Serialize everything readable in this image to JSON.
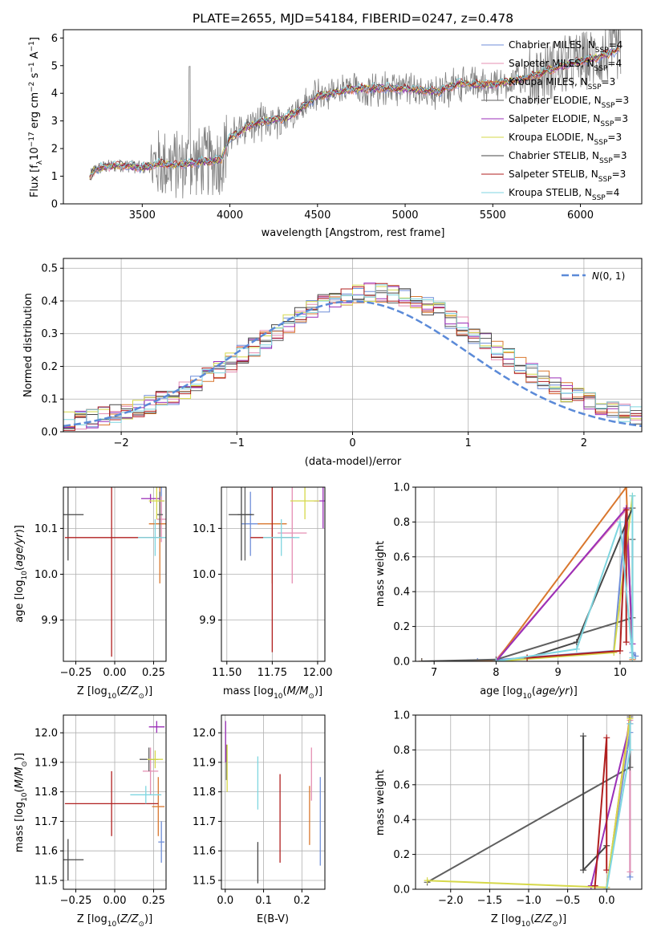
{
  "palette": [
    "#6f8ed8",
    "#e58fb3",
    "#d9772e",
    "#5f5f5f",
    "#9b2fb8",
    "#d6d84a",
    "#474747",
    "#b01f1f",
    "#7fd6e0"
  ],
  "chart_data": [
    {
      "id": "spectrum",
      "type": "line",
      "title": "PLATE=2655, MJD=54184, FIBERID=0247, z=0.478",
      "xlabel": "wavelength [Angstrom, rest frame]",
      "ylabel": "Flux [f$_\\lambda$10$^{-17}$ erg cm$^{-2}$ s$^{-1}$ A$^{-1}$]",
      "xlim": [
        3050,
        6350
      ],
      "ylim": [
        0,
        6.3
      ],
      "xticks": [
        3500,
        4000,
        4500,
        5000,
        5500,
        6000
      ],
      "yticks": [
        0,
        1,
        2,
        3,
        4,
        5,
        6
      ],
      "grid": false,
      "legend_position": "upper right",
      "data_color": "#808080",
      "model_anchors": [
        [
          3200,
          0.95
        ],
        [
          3230,
          1.25
        ],
        [
          3300,
          1.35
        ],
        [
          3400,
          1.4
        ],
        [
          3500,
          1.3
        ],
        [
          3600,
          1.45
        ],
        [
          3700,
          1.4
        ],
        [
          3800,
          1.5
        ],
        [
          3900,
          1.55
        ],
        [
          3950,
          1.6
        ],
        [
          3990,
          2.3
        ],
        [
          4100,
          2.8
        ],
        [
          4200,
          3.0
        ],
        [
          4300,
          3.05
        ],
        [
          4400,
          3.4
        ],
        [
          4500,
          3.9
        ],
        [
          4700,
          4.15
        ],
        [
          4900,
          4.2
        ],
        [
          5100,
          4.1
        ],
        [
          5200,
          4.05
        ],
        [
          5300,
          4.35
        ],
        [
          5500,
          4.3
        ],
        [
          5700,
          4.55
        ],
        [
          5900,
          5.0
        ],
        [
          6100,
          5.3
        ],
        [
          6230,
          5.6
        ]
      ],
      "series": [
        {
          "name": "Chabrier MILES, N",
          "sub": "SSP",
          "suffix": "=4",
          "color": "#6f8ed8"
        },
        {
          "name": "Salpeter MILES, N",
          "sub": "SSP",
          "suffix": "=4",
          "color": "#e58fb3"
        },
        {
          "name": "Kroupa MILES, N",
          "sub": "SSP",
          "suffix": "=3",
          "color": "#d9772e"
        },
        {
          "name": "Chabrier ELODIE, N",
          "sub": "SSP",
          "suffix": "=3",
          "color": "#5f5f5f"
        },
        {
          "name": "Salpeter ELODIE, N",
          "sub": "SSP",
          "suffix": "=3",
          "color": "#9b2fb8"
        },
        {
          "name": "Kroupa ELODIE, N",
          "sub": "SSP",
          "suffix": "=3",
          "color": "#d6d84a"
        },
        {
          "name": "Chabrier STELIB, N",
          "sub": "SSP",
          "suffix": "=3",
          "color": "#474747"
        },
        {
          "name": "Salpeter STELIB, N",
          "sub": "SSP",
          "suffix": "=3",
          "color": "#b01f1f"
        },
        {
          "name": "Kroupa STELIB, N",
          "sub": "SSP",
          "suffix": "=4",
          "color": "#7fd6e0"
        }
      ]
    },
    {
      "id": "residuals",
      "type": "line",
      "xlabel": "(data-model)/error",
      "ylabel": "Normed distribution",
      "xlim": [
        -2.5,
        2.5
      ],
      "ylim": [
        0,
        0.53
      ],
      "xticks": [
        -2,
        -1,
        0,
        1,
        2
      ],
      "yticks": [
        0.0,
        0.1,
        0.2,
        0.3,
        0.4,
        0.5
      ],
      "grid": true,
      "legend_position": "upper right",
      "gaussian_label": "N(0, 1)",
      "gaussian_color": "#5b8ad8",
      "bin_width": 0.1,
      "histogram_color_order": [
        0,
        1,
        2,
        3,
        4,
        5,
        6,
        7,
        8
      ]
    },
    {
      "id": "age_vs_Z",
      "type": "scatter",
      "xlabel": "Z [log10(Z/Z☉)]",
      "ylabel": "age  [log10(age/yr)]",
      "xlim": [
        -0.33,
        0.33
      ],
      "ylim": [
        9.81,
        10.19
      ],
      "xticks": [
        -0.25,
        0.0,
        0.25
      ],
      "yticks": [
        9.9,
        10.0,
        10.1
      ],
      "grid": true,
      "points": [
        {
          "x": 0.3,
          "y": 10.16,
          "xerr": 0.02,
          "yerr": 0.03,
          "color": "#6f8ed8"
        },
        {
          "x": 0.3,
          "y": 10.12,
          "xerr": 0.03,
          "yerr": 0.05,
          "color": "#e58fb3"
        },
        {
          "x": 0.29,
          "y": 10.11,
          "xerr": 0.07,
          "yerr": 0.13,
          "color": "#d9772e"
        },
        {
          "x": 0.29,
          "y": 10.13,
          "xerr": 0.02,
          "yerr": 0.05,
          "color": "#5f5f5f"
        },
        {
          "x": 0.23,
          "y": 10.165,
          "xerr": 0.06,
          "yerr": 0.01,
          "color": "#9b2fb8"
        },
        {
          "x": 0.27,
          "y": 10.16,
          "xerr": 0.05,
          "yerr": 0.04,
          "color": "#d6d84a"
        },
        {
          "x": -0.3,
          "y": 10.13,
          "xerr": 0.1,
          "yerr": 0.1,
          "color": "#474747"
        },
        {
          "x": -0.02,
          "y": 10.08,
          "xerr": 0.3,
          "yerr": 0.26,
          "color": "#b01f1f"
        },
        {
          "x": 0.26,
          "y": 10.08,
          "xerr": 0.11,
          "yerr": 0.04,
          "color": "#7fd6e0"
        }
      ]
    },
    {
      "id": "age_vs_mass",
      "type": "scatter",
      "xlabel": "mass [log10(M/M☉)]",
      "ylabel": "",
      "xlim": [
        11.47,
        12.04
      ],
      "ylim": [
        9.81,
        10.19
      ],
      "xticks": [
        11.5,
        11.75,
        12.0
      ],
      "yticks": [
        9.9,
        10.0,
        10.1
      ],
      "grid": true,
      "points": [
        {
          "x": 11.63,
          "y": 10.11,
          "xerr": 0.05,
          "yerr": 0.07,
          "color": "#6f8ed8"
        },
        {
          "x": 11.86,
          "y": 10.09,
          "xerr": 0.08,
          "yerr": 0.11,
          "color": "#e58fb3"
        },
        {
          "x": 11.75,
          "y": 10.11,
          "xerr": 0.08,
          "yerr": 0.13,
          "color": "#d9772e"
        },
        {
          "x": 11.6,
          "y": 10.13,
          "xerr": 0.04,
          "yerr": 0.1,
          "color": "#5f5f5f"
        },
        {
          "x": 12.03,
          "y": 10.16,
          "xerr": 0.05,
          "yerr": 0.06,
          "color": "#9b2fb8"
        },
        {
          "x": 11.93,
          "y": 10.16,
          "xerr": 0.08,
          "yerr": 0.04,
          "color": "#d6d84a"
        },
        {
          "x": 11.58,
          "y": 10.13,
          "xerr": 0.07,
          "yerr": 0.1,
          "color": "#474747"
        },
        {
          "x": 11.75,
          "y": 10.08,
          "xerr": 0.12,
          "yerr": 0.25,
          "color": "#b01f1f"
        },
        {
          "x": 11.8,
          "y": 10.08,
          "xerr": 0.1,
          "yerr": 0.04,
          "color": "#7fd6e0"
        }
      ]
    },
    {
      "id": "weight_vs_age",
      "type": "line",
      "xlabel": "age  [log10(age/yr)]",
      "ylabel": "mass weight",
      "xlim": [
        6.7,
        10.35
      ],
      "ylim": [
        0,
        1.0
      ],
      "xticks": [
        7,
        8,
        9,
        10
      ],
      "yticks": [
        0.0,
        0.2,
        0.4,
        0.6,
        0.8,
        1.0
      ],
      "grid": true,
      "series": [
        {
          "color": "#6f8ed8",
          "x": [
            7.7,
            9.9,
            10.1,
            10.2,
            10.25
          ],
          "y": [
            0.0,
            0.06,
            0.87,
            0.05,
            0.03
          ]
        },
        {
          "color": "#e58fb3",
          "x": [
            8.0,
            10.1,
            10.2
          ],
          "y": [
            0.01,
            0.87,
            0.1
          ]
        },
        {
          "color": "#d9772e",
          "x": [
            6.8,
            8.0,
            10.1,
            10.2
          ],
          "y": [
            0.0,
            0.0,
            1.0,
            0.01
          ]
        },
        {
          "color": "#5f5f5f",
          "x": [
            6.8,
            8.0,
            10.2,
            10.2
          ],
          "y": [
            0.0,
            0.01,
            0.25,
            0.7
          ]
        },
        {
          "color": "#9b2fb8",
          "x": [
            8.0,
            10.1,
            10.2
          ],
          "y": [
            0.0,
            0.88,
            0.1
          ]
        },
        {
          "color": "#d6d84a",
          "x": [
            8.0,
            9.9,
            10.2
          ],
          "y": [
            0.0,
            0.05,
            0.95
          ]
        },
        {
          "color": "#474747",
          "x": [
            8.5,
            9.3,
            10.2
          ],
          "y": [
            0.02,
            0.11,
            0.88
          ]
        },
        {
          "color": "#b01f1f",
          "x": [
            8.5,
            10.0,
            10.1,
            10.1
          ],
          "y": [
            0.02,
            0.06,
            0.87,
            0.11
          ]
        },
        {
          "color": "#7fd6e0",
          "x": [
            8.0,
            9.3,
            10.0,
            10.2,
            10.2
          ],
          "y": [
            0.0,
            0.07,
            0.8,
            0.02,
            0.95
          ]
        }
      ]
    },
    {
      "id": "mass_vs_Z",
      "type": "scatter",
      "xlabel": "Z [log10(Z/Z☉)]",
      "ylabel": "mass [log10(M/M☉)]",
      "xlim": [
        -0.33,
        0.33
      ],
      "ylim": [
        11.47,
        12.06
      ],
      "xticks": [
        -0.25,
        0.0,
        0.25
      ],
      "yticks": [
        11.5,
        11.6,
        11.7,
        11.8,
        11.9,
        12.0
      ],
      "grid": true,
      "points": [
        {
          "x": 0.3,
          "y": 11.63,
          "xerr": 0.02,
          "yerr": 0.07,
          "color": "#6f8ed8"
        },
        {
          "x": 0.23,
          "y": 11.87,
          "xerr": 0.05,
          "yerr": 0.08,
          "color": "#e58fb3"
        },
        {
          "x": 0.28,
          "y": 11.75,
          "xerr": 0.04,
          "yerr": 0.1,
          "color": "#d9772e"
        },
        {
          "x": 0.22,
          "y": 11.91,
          "xerr": 0.06,
          "yerr": 0.04,
          "color": "#5f5f5f"
        },
        {
          "x": 0.27,
          "y": 12.02,
          "xerr": 0.05,
          "yerr": 0.02,
          "color": "#9b2fb8"
        },
        {
          "x": 0.26,
          "y": 11.91,
          "xerr": 0.05,
          "yerr": 0.03,
          "color": "#d6d84a"
        },
        {
          "x": -0.3,
          "y": 11.57,
          "xerr": 0.1,
          "yerr": 0.07,
          "color": "#474747"
        },
        {
          "x": -0.02,
          "y": 11.76,
          "xerr": 0.3,
          "yerr": 0.11,
          "color": "#b01f1f"
        },
        {
          "x": 0.2,
          "y": 11.79,
          "xerr": 0.1,
          "yerr": 0.03,
          "color": "#7fd6e0"
        }
      ]
    },
    {
      "id": "mass_vs_ebv",
      "type": "scatter",
      "xlabel": "E(B-V)",
      "ylabel": "",
      "xlim": [
        -0.01,
        0.26
      ],
      "ylim": [
        11.47,
        12.06
      ],
      "xticks": [
        0.0,
        0.1,
        0.2
      ],
      "yticks": [
        11.5,
        11.6,
        11.7,
        11.8,
        11.9,
        12.0
      ],
      "grid": true,
      "points": [
        {
          "x": 0.248,
          "y": 11.7,
          "xerr": 0.0,
          "yerr": 0.15,
          "color": "#6f8ed8"
        },
        {
          "x": 0.225,
          "y": 11.86,
          "xerr": 0.0,
          "yerr": 0.09,
          "color": "#e58fb3"
        },
        {
          "x": 0.22,
          "y": 11.72,
          "xerr": 0.0,
          "yerr": 0.1,
          "color": "#d9772e"
        },
        {
          "x": 0.003,
          "y": 11.9,
          "xerr": 0.0,
          "yerr": 0.06,
          "color": "#5f5f5f"
        },
        {
          "x": 0.001,
          "y": 11.97,
          "xerr": 0.0,
          "yerr": 0.07,
          "color": "#9b2fb8"
        },
        {
          "x": 0.005,
          "y": 11.88,
          "xerr": 0.0,
          "yerr": 0.08,
          "color": "#d6d84a"
        },
        {
          "x": 0.085,
          "y": 11.56,
          "xerr": 0.0,
          "yerr": 0.07,
          "color": "#474747"
        },
        {
          "x": 0.143,
          "y": 11.71,
          "xerr": 0.0,
          "yerr": 0.15,
          "color": "#b01f1f"
        },
        {
          "x": 0.085,
          "y": 11.83,
          "xerr": 0.0,
          "yerr": 0.09,
          "color": "#7fd6e0"
        }
      ]
    },
    {
      "id": "weight_vs_Z",
      "type": "line",
      "xlabel": "Z [log10(Z/Z☉)]",
      "ylabel": "mass weight",
      "xlim": [
        -2.45,
        0.45
      ],
      "ylim": [
        0,
        1.0
      ],
      "xticks": [
        -2.0,
        -1.5,
        -1.0,
        -0.5,
        0.0
      ],
      "yticks": [
        0.0,
        0.2,
        0.4,
        0.6,
        0.8,
        1.0
      ],
      "grid": true,
      "series": [
        {
          "color": "#6f8ed8",
          "x": [
            0.0,
            0.3,
            0.3
          ],
          "y": [
            0.01,
            0.9,
            0.07
          ]
        },
        {
          "color": "#e58fb3",
          "x": [
            0.0,
            0.3,
            0.3
          ],
          "y": [
            0.01,
            0.97,
            0.1
          ]
        },
        {
          "color": "#d9772e",
          "x": [
            0.0,
            0.3
          ],
          "y": [
            0.0,
            1.0
          ]
        },
        {
          "color": "#5f5f5f",
          "x": [
            -2.3,
            0.3,
            0.3
          ],
          "y": [
            0.04,
            0.7,
            0.99
          ]
        },
        {
          "color": "#9b2fb8",
          "x": [
            -0.2,
            0.3
          ],
          "y": [
            0.02,
            0.95
          ]
        },
        {
          "color": "#d6d84a",
          "x": [
            -2.3,
            0.0,
            0.3
          ],
          "y": [
            0.05,
            0.01,
            0.98
          ]
        },
        {
          "color": "#474747",
          "x": [
            -0.3,
            -0.3,
            0.0
          ],
          "y": [
            0.88,
            0.11,
            0.25
          ]
        },
        {
          "color": "#b01f1f",
          "x": [
            -0.15,
            0.0,
            0.0
          ],
          "y": [
            0.02,
            0.87,
            0.11
          ]
        },
        {
          "color": "#7fd6e0",
          "x": [
            0.0,
            0.3,
            0.3
          ],
          "y": [
            0.0,
            0.8,
            0.95
          ]
        }
      ]
    }
  ]
}
